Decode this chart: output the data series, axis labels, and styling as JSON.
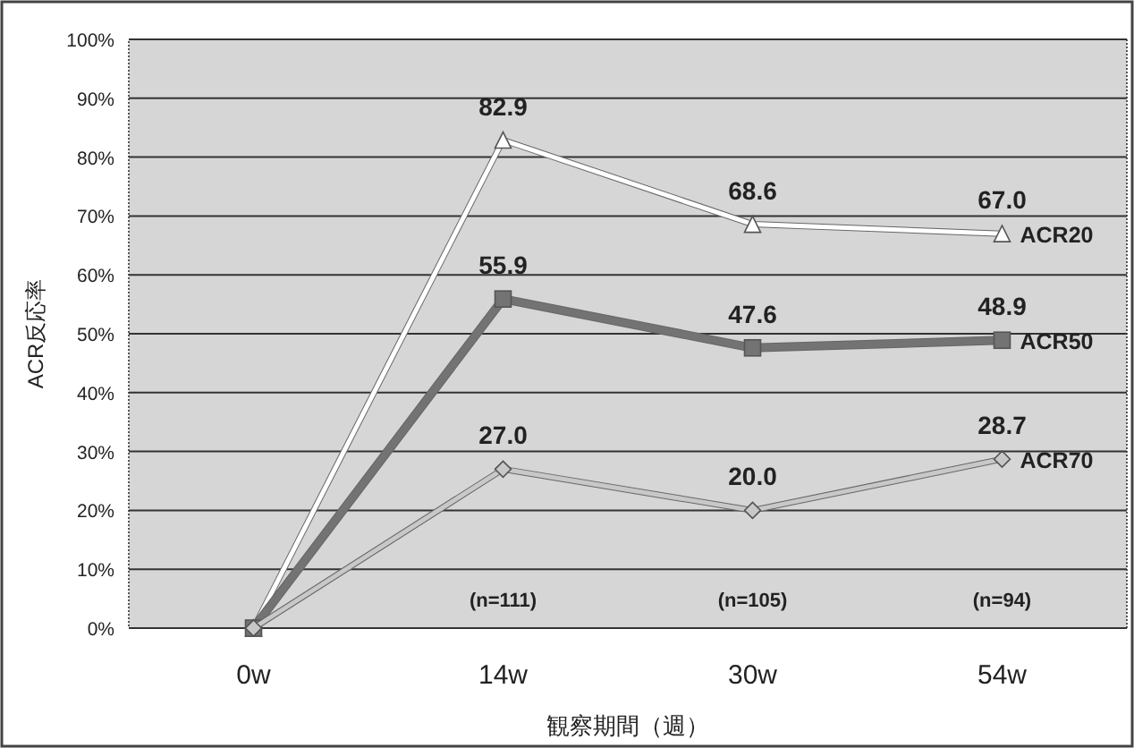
{
  "chart_data": {
    "type": "line",
    "xlabel": "観察期間（週）",
    "ylabel": "ACR反応率",
    "categories": [
      "0w",
      "14w",
      "30w",
      "54w"
    ],
    "ylim": [
      0,
      100
    ],
    "yticks": [
      {
        "value": 0,
        "label": "0%"
      },
      {
        "value": 10,
        "label": "10%"
      },
      {
        "value": 20,
        "label": "20%"
      },
      {
        "value": 30,
        "label": "30%"
      },
      {
        "value": 40,
        "label": "40%"
      },
      {
        "value": 50,
        "label": "50%"
      },
      {
        "value": 60,
        "label": "60%"
      },
      {
        "value": 70,
        "label": "70%"
      },
      {
        "value": 80,
        "label": "80%"
      },
      {
        "value": 90,
        "label": "90%"
      },
      {
        "value": 100,
        "label": "100%"
      }
    ],
    "grid": "y",
    "series": [
      {
        "name": "ACR20",
        "color": "#ffffff",
        "marker": "triangle",
        "values": [
          0,
          82.9,
          68.6,
          67.0
        ],
        "value_labels": [
          null,
          "82.9",
          "68.6",
          "67.0"
        ]
      },
      {
        "name": "ACR50",
        "color": "#737373",
        "marker": "square",
        "values": [
          0,
          55.9,
          47.6,
          48.9
        ],
        "value_labels": [
          null,
          "55.9",
          "47.6",
          "48.9"
        ]
      },
      {
        "name": "ACR70",
        "color": "#c8c8c8",
        "marker": "diamond",
        "values": [
          0,
          27.0,
          20.0,
          28.7
        ],
        "value_labels": [
          null,
          "27.0",
          "20.0",
          "28.7"
        ]
      }
    ],
    "annotations": [
      "(n=111)",
      "(n=105)",
      "(n=94)"
    ]
  }
}
